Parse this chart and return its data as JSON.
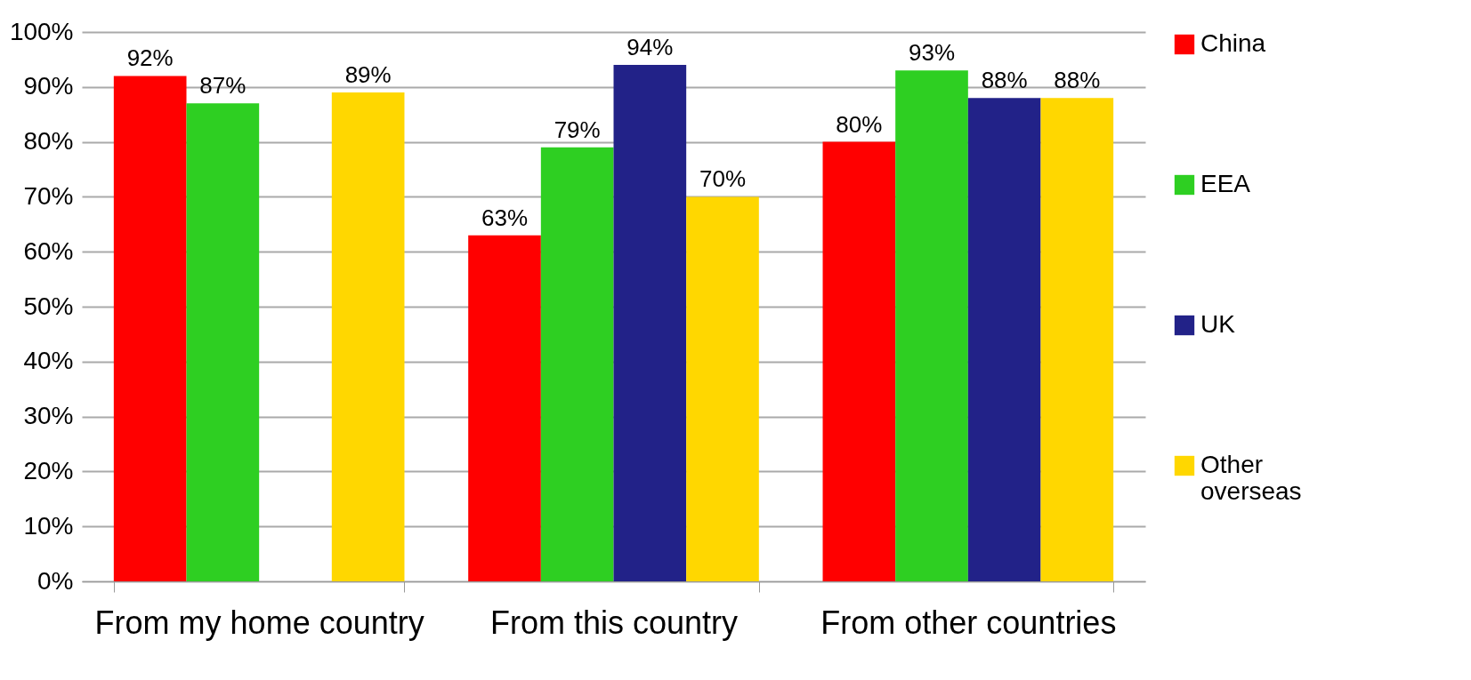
{
  "chart_data": {
    "type": "bar",
    "categories": [
      "From my home country",
      "From this country",
      "From other countries"
    ],
    "series": [
      {
        "name": "China",
        "color": "#ff0000",
        "values": [
          92,
          63,
          80
        ],
        "value_labels": [
          "92%",
          "63%",
          "80%"
        ]
      },
      {
        "name": "EEA",
        "color": "#2ecf22",
        "values": [
          87,
          79,
          93
        ],
        "value_labels": [
          "87%",
          "79%",
          "93%"
        ]
      },
      {
        "name": "UK",
        "color": "#222288",
        "values": [
          null,
          94,
          88
        ],
        "value_labels": [
          null,
          "94%",
          "88%"
        ]
      },
      {
        "name": "Other overseas",
        "color": "#ffd700",
        "values": [
          89,
          70,
          88
        ],
        "value_labels": [
          "89%",
          "70%",
          "88%"
        ]
      }
    ],
    "ylim": [
      0,
      100
    ],
    "yticks": [
      {
        "value": 0,
        "label": "0%"
      },
      {
        "value": 10,
        "label": "10%"
      },
      {
        "value": 20,
        "label": "20%"
      },
      {
        "value": 30,
        "label": "30%"
      },
      {
        "value": 40,
        "label": "40%"
      },
      {
        "value": 50,
        "label": "50%"
      },
      {
        "value": 60,
        "label": "60%"
      },
      {
        "value": 70,
        "label": "70%"
      },
      {
        "value": 80,
        "label": "80%"
      },
      {
        "value": 90,
        "label": "90%"
      },
      {
        "value": 100,
        "label": "100%"
      }
    ],
    "grid": "y",
    "legend": "right"
  }
}
